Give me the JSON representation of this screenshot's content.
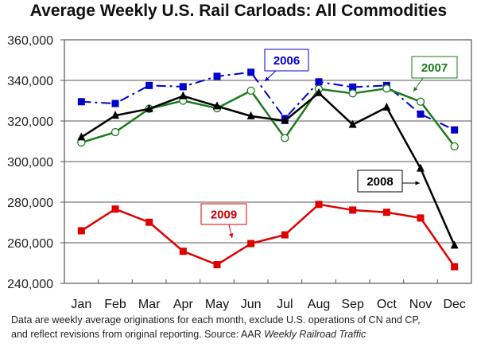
{
  "chart_data": {
    "type": "line",
    "title": "Average Weekly U.S. Rail Carloads: All Commodities",
    "xlabel": "",
    "ylabel": "",
    "categories": [
      "Jan",
      "Feb",
      "Mar",
      "Apr",
      "May",
      "Jun",
      "Jul",
      "Aug",
      "Sep",
      "Oct",
      "Nov",
      "Dec"
    ],
    "ylim": [
      240000,
      360000
    ],
    "yticks": [
      240000,
      260000,
      280000,
      300000,
      320000,
      340000,
      360000
    ],
    "ytick_labels": [
      "240,000",
      "260,000",
      "280,000",
      "300,000",
      "320,000",
      "340,000",
      "360,000"
    ],
    "grid": true,
    "series": [
      {
        "name": "2006",
        "color": "#0000cc",
        "marker": "square",
        "style": "dashdot",
        "values": [
          329500,
          328600,
          337500,
          336900,
          342000,
          344000,
          321200,
          339300,
          336700,
          337500,
          323400,
          315600
        ]
      },
      {
        "name": "2007",
        "color": "#1a7a1a",
        "marker": "open-circle",
        "style": "solid",
        "values": [
          309400,
          314500,
          326000,
          330000,
          326300,
          334900,
          311600,
          335800,
          333600,
          336000,
          329500,
          307500
        ]
      },
      {
        "name": "2008",
        "color": "#000000",
        "marker": "triangle",
        "style": "solid",
        "values": [
          312000,
          322700,
          326000,
          332300,
          327300,
          322400,
          320100,
          333800,
          318200,
          326700,
          296600,
          258700
        ]
      },
      {
        "name": "2009",
        "color": "#e00000",
        "marker": "square",
        "style": "solid",
        "values": [
          265900,
          276600,
          270100,
          255800,
          249200,
          259600,
          263900,
          278900,
          276100,
          275000,
          272200,
          248200
        ]
      }
    ],
    "annotations": [
      {
        "text": "2006",
        "series": "2006"
      },
      {
        "text": "2007",
        "series": "2007"
      },
      {
        "text": "2008",
        "series": "2008"
      },
      {
        "text": "2009",
        "series": "2009"
      }
    ]
  },
  "footnote": {
    "line1": "Data are weekly average originations for each month, exclude U.S. operations of CN and CP,",
    "line2_plain": "and reflect revisions from original reporting.  Source: AAR ",
    "line2_italic": "Weekly Railroad Traffic"
  }
}
